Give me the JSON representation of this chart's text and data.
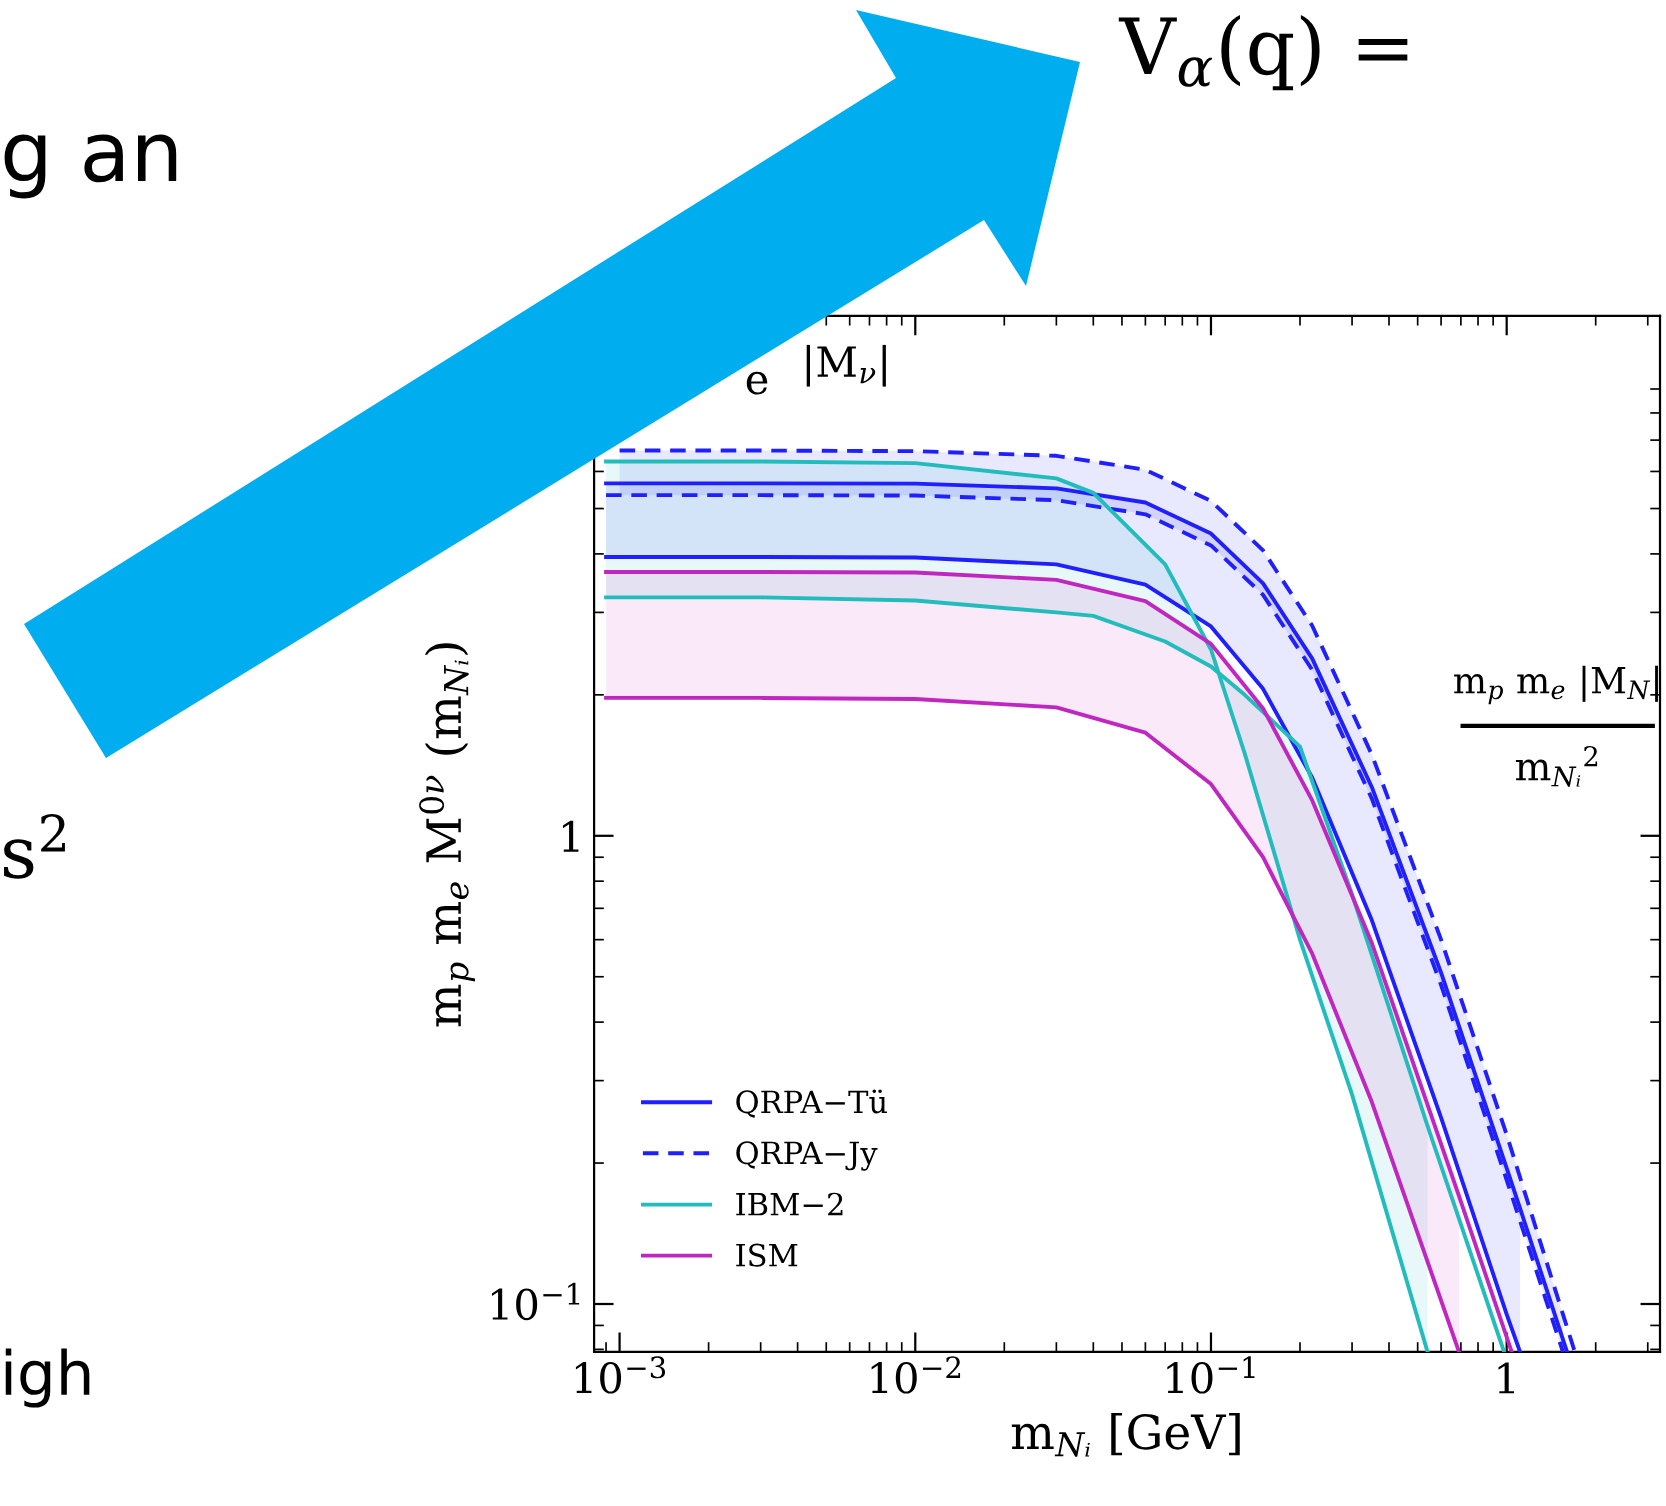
{
  "chart_data": {
    "type": "line",
    "xlabel": "m$_{Nᵢ}$ [GeV]",
    "ylabel": "m$_{p}$ m$_{e}$ M$^{0ν}$ (m$_{Nᵢ}$)",
    "log": "xy",
    "xlim": [
      0.00082,
      3.3
    ],
    "ylim": [
      0.079,
      12.9
    ],
    "xticks": [
      {
        "value": 0.001,
        "label": "10$^{−3}$"
      },
      {
        "value": 0.01,
        "label": "10$^{−2}$"
      },
      {
        "value": 0.1,
        "label": "10$^{−1}$"
      },
      {
        "value": 1,
        "label": "1"
      }
    ],
    "yticks": [
      {
        "value": 0.1,
        "label": "10$^{−1}$"
      },
      {
        "value": 1,
        "label": "1"
      }
    ],
    "grid": false,
    "legend": "bottom left",
    "marker": "none",
    "series": [
      {
        "name": "QRPA−Tü",
        "color": "#1f1fff",
        "line_style": "solid",
        "x": [
          0.0009,
          0.003,
          0.01,
          0.03,
          0.06,
          0.1,
          0.15,
          0.22,
          0.35,
          0.6,
          1.0,
          1.11,
          1.6
        ],
        "values": [
          5.66,
          5.66,
          5.65,
          5.52,
          5.15,
          4.42,
          3.46,
          2.39,
          1.27,
          0.51,
          0.195,
          0.16,
          0.079
        ],
        "lower": [
          3.94,
          3.94,
          3.93,
          3.8,
          3.44,
          2.8,
          2.06,
          1.33,
          0.66,
          0.25,
          0.095,
          0.079,
          null
        ],
        "upper": [
          5.66,
          5.66,
          5.65,
          5.52,
          5.15,
          4.42,
          3.46,
          2.39,
          1.27,
          0.51,
          0.195,
          0.16,
          null
        ]
      },
      {
        "color": "#1f1fff",
        "line_style": "solid",
        "x": [
          0.0009,
          0.003,
          0.01,
          0.03,
          0.06,
          0.1,
          0.15,
          0.22,
          0.35,
          0.6,
          1.0,
          1.11
        ],
        "values": [
          3.94,
          3.94,
          3.93,
          3.8,
          3.44,
          2.8,
          2.06,
          1.33,
          0.66,
          0.25,
          0.095,
          0.079
        ]
      },
      {
        "name": "QRPA−Jy",
        "color": "#1f1fff",
        "line_style": "dashed",
        "x": [
          0.001,
          0.003,
          0.01,
          0.03,
          0.06,
          0.1,
          0.15,
          0.22,
          0.35,
          0.6,
          1.0,
          1.55,
          1.7
        ],
        "values": [
          6.65,
          6.65,
          6.63,
          6.48,
          6.05,
          5.19,
          4.07,
          2.81,
          1.49,
          0.6,
          0.23,
          0.095,
          0.079
        ],
        "lower": [
          5.34,
          5.34,
          5.33,
          5.21,
          4.86,
          4.17,
          3.27,
          2.26,
          1.2,
          0.48,
          0.184,
          0.079,
          null
        ],
        "upper": [
          6.65,
          6.65,
          6.63,
          6.48,
          6.05,
          5.19,
          4.07,
          2.81,
          1.49,
          0.6,
          0.23,
          0.095,
          null
        ]
      },
      {
        "color": "#1f1fff",
        "line_style": "dashed",
        "x": [
          0.0009,
          0.003,
          0.01,
          0.03,
          0.06,
          0.1,
          0.15,
          0.22,
          0.35,
          0.6,
          1.0,
          1.55
        ],
        "values": [
          5.34,
          5.34,
          5.33,
          5.21,
          4.86,
          4.17,
          3.27,
          2.26,
          1.2,
          0.48,
          0.184,
          0.079
        ]
      },
      {
        "name": "IBM−2",
        "color": "#22bcbc",
        "line_style": "solid",
        "x": [
          0.0009,
          0.003,
          0.01,
          0.03,
          0.04,
          0.07,
          0.1,
          0.13,
          0.2,
          0.3,
          0.54
        ],
        "values": [
          6.3,
          6.3,
          6.25,
          5.8,
          5.4,
          3.8,
          2.5,
          1.5,
          0.6,
          0.28,
          0.079
        ],
        "lower": [
          3.23,
          3.23,
          3.18,
          3.0,
          2.95,
          2.6,
          2.3,
          2.0,
          1.55,
          0.75,
          0.24
        ],
        "upper": [
          6.3,
          6.3,
          6.25,
          5.8,
          5.4,
          3.8,
          2.5,
          1.5,
          0.6,
          0.28,
          0.079
        ]
      },
      {
        "color": "#22bcbc",
        "line_style": "solid",
        "x": [
          0.0009,
          0.003,
          0.01,
          0.03,
          0.04,
          0.07,
          0.1,
          0.13,
          0.2,
          0.3,
          0.54,
          0.98
        ],
        "values": [
          3.23,
          3.23,
          3.18,
          3.0,
          2.95,
          2.6,
          2.3,
          2.0,
          1.55,
          0.75,
          0.24,
          0.079
        ]
      },
      {
        "name": "ISM",
        "color": "#c026c0",
        "line_style": "solid",
        "x": [
          0.0009,
          0.003,
          0.01,
          0.03,
          0.06,
          0.1,
          0.15,
          0.22,
          0.35,
          0.69,
          1.04
        ],
        "values": [
          3.66,
          3.66,
          3.65,
          3.52,
          3.17,
          2.57,
          1.87,
          1.19,
          0.59,
          0.17,
          0.079
        ],
        "lower": [
          1.97,
          1.97,
          1.96,
          1.88,
          1.66,
          1.29,
          0.9,
          0.56,
          0.27,
          0.079,
          null
        ],
        "upper": [
          3.66,
          3.66,
          3.65,
          3.52,
          3.17,
          2.57,
          1.87,
          1.19,
          0.59,
          0.17,
          null
        ]
      },
      {
        "color": "#c026c0",
        "line_style": "solid",
        "x": [
          0.0009,
          0.003,
          0.01,
          0.03,
          0.06,
          0.1,
          0.15,
          0.22,
          0.35,
          0.69
        ],
        "values": [
          1.97,
          1.97,
          1.96,
          1.88,
          1.66,
          1.29,
          0.9,
          0.56,
          0.27,
          0.079
        ]
      }
    ],
    "annotations": [
      "|M$_{ν}$|",
      "m$_{p}$ m$_{e}$ |M$_{N}$|",
      "m$_{Nᵢ}$$^{2}$",
      "g an",
      "igh",
      "V$_{α}$(q) =",
      "s$^{2}$",
      "e"
    ]
  }
}
